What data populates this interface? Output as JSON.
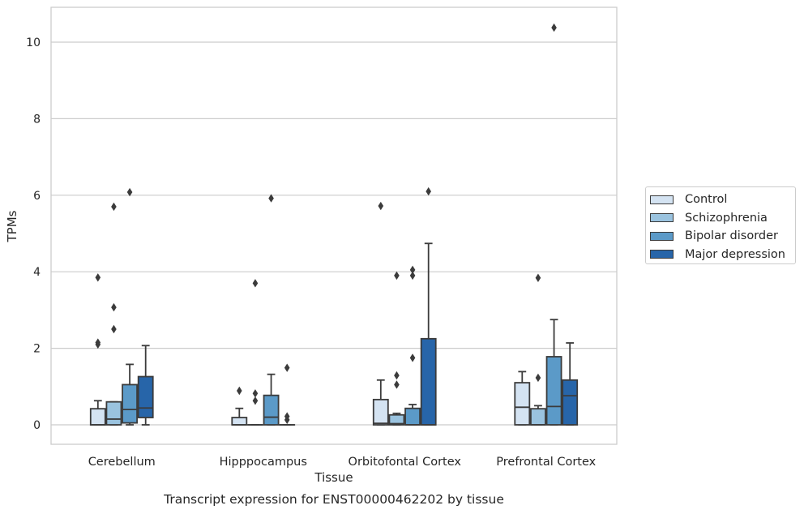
{
  "chart_data": {
    "type": "boxplot",
    "title": "Transcript expression for ENST00000462202 by tissue",
    "xlabel": "Tissue",
    "ylabel": "TPMs",
    "ylim": [
      -0.5,
      10.9
    ],
    "yticks": [
      0,
      2,
      4,
      6,
      8,
      10
    ],
    "grid": "horizontal",
    "legend_position": "right",
    "categories": [
      "Cerebellum",
      "Hipppocampus",
      "Orbitofontal Cortex",
      "Prefrontal Cortex"
    ],
    "series": [
      {
        "name": "Control",
        "color": "#d4e3f2",
        "boxes": [
          {
            "whislo": 0,
            "q1": 0,
            "med": 0,
            "q3": 0.42,
            "whishi": 0.63,
            "fliers": [
              2.1,
              2.15,
              3.85
            ]
          },
          {
            "whislo": 0,
            "q1": 0,
            "med": 0,
            "q3": 0.19,
            "whishi": 0.43,
            "fliers": [
              0.89
            ]
          },
          {
            "whislo": 0,
            "q1": 0,
            "med": 0.04,
            "q3": 0.66,
            "whishi": 1.17,
            "fliers": [
              5.72
            ]
          },
          {
            "whislo": 0,
            "q1": 0,
            "med": 0.46,
            "q3": 1.1,
            "whishi": 1.39,
            "fliers": []
          }
        ]
      },
      {
        "name": "Schizophrenia",
        "color": "#9ac3df",
        "boxes": [
          {
            "whislo": 0,
            "q1": 0,
            "med": 0.15,
            "q3": 0.6,
            "whishi": 0.6,
            "fliers": [
              2.5,
              3.07,
              5.7
            ]
          },
          {
            "whislo": 0,
            "q1": 0,
            "med": 0,
            "q3": 0,
            "whishi": 0,
            "fliers": [
              0.63,
              0.82,
              3.7
            ]
          },
          {
            "whislo": 0,
            "q1": 0,
            "med": 0.03,
            "q3": 0.26,
            "whishi": 0.3,
            "fliers": [
              1.05,
              1.29,
              3.9
            ]
          },
          {
            "whislo": 0,
            "q1": 0,
            "med": 0,
            "q3": 0.42,
            "whishi": 0.5,
            "fliers": [
              1.23,
              3.84
            ]
          }
        ]
      },
      {
        "name": "Bipolar disorder",
        "color": "#5b9ac8",
        "boxes": [
          {
            "whislo": 0,
            "q1": 0.05,
            "med": 0.4,
            "q3": 1.05,
            "whishi": 1.58,
            "fliers": [
              6.08
            ]
          },
          {
            "whislo": 0,
            "q1": 0,
            "med": 0.2,
            "q3": 0.77,
            "whishi": 1.32,
            "fliers": [
              5.92
            ]
          },
          {
            "whislo": 0,
            "q1": 0,
            "med": 0,
            "q3": 0.43,
            "whishi": 0.53,
            "fliers": [
              1.75,
              3.9,
              4.05
            ]
          },
          {
            "whislo": 0,
            "q1": 0,
            "med": 0.48,
            "q3": 1.78,
            "whishi": 2.75,
            "fliers": [
              10.38
            ]
          }
        ]
      },
      {
        "name": "Major depression",
        "color": "#2765a9",
        "boxes": [
          {
            "whislo": 0,
            "q1": 0.19,
            "med": 0.44,
            "q3": 1.26,
            "whishi": 2.07,
            "fliers": []
          },
          {
            "whislo": 0,
            "q1": 0,
            "med": 0,
            "q3": 0,
            "whishi": 0,
            "fliers": [
              0.13,
              0.22,
              1.49
            ]
          },
          {
            "whislo": 0,
            "q1": 0,
            "med": 0,
            "q3": 2.25,
            "whishi": 4.74,
            "fliers": [
              6.1
            ]
          },
          {
            "whislo": 0,
            "q1": 0,
            "med": 0.76,
            "q3": 1.17,
            "whishi": 2.14,
            "fliers": []
          }
        ]
      }
    ]
  }
}
